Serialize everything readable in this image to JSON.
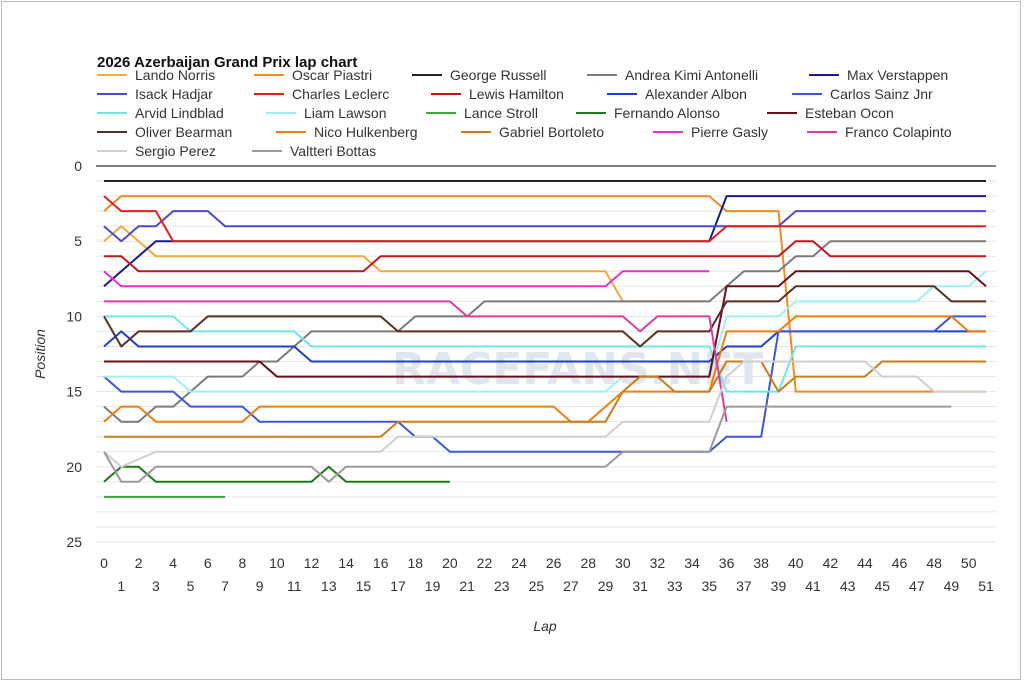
{
  "chart_data": {
    "type": "line",
    "title": "2026 Azerbaijan Grand Prix lap chart",
    "xlabel": "Lap",
    "ylabel": "Position",
    "xlim": [
      0,
      51
    ],
    "ylim": [
      25,
      0
    ],
    "yticks": [
      0,
      5,
      10,
      15,
      20,
      25
    ],
    "watermark": "RACEFANS.NET",
    "series": [
      {
        "name": "Lando Norris",
        "color": "#f2a93b",
        "points": [
          [
            0,
            5
          ],
          [
            1,
            4
          ],
          [
            2,
            5
          ],
          [
            3,
            6
          ],
          [
            15,
            6
          ],
          [
            16,
            7
          ],
          [
            29,
            7
          ],
          [
            30,
            9
          ],
          [
            35,
            9
          ]
        ]
      },
      {
        "name": "Oscar Piastri",
        "color": "#f08a24",
        "points": [
          [
            0,
            3
          ],
          [
            1,
            2
          ],
          [
            35,
            2
          ],
          [
            36,
            3
          ],
          [
            39,
            3
          ],
          [
            40,
            15
          ],
          [
            51,
            15
          ]
        ]
      },
      {
        "name": "George Russell",
        "color": "#222222",
        "points": [
          [
            0,
            1
          ],
          [
            51,
            1
          ]
        ]
      },
      {
        "name": "Andrea Kimi Antonelli",
        "color": "#7a7a7a",
        "points": [
          [
            0,
            16
          ],
          [
            1,
            17
          ],
          [
            2,
            17
          ],
          [
            3,
            16
          ],
          [
            4,
            16
          ],
          [
            5,
            15
          ],
          [
            6,
            14
          ],
          [
            8,
            14
          ],
          [
            9,
            13
          ],
          [
            10,
            13
          ],
          [
            11,
            12
          ],
          [
            12,
            11
          ],
          [
            17,
            11
          ],
          [
            18,
            10
          ],
          [
            21,
            10
          ],
          [
            22,
            9
          ],
          [
            35,
            9
          ],
          [
            36,
            8
          ],
          [
            37,
            7
          ],
          [
            39,
            7
          ],
          [
            40,
            6
          ],
          [
            41,
            6
          ],
          [
            42,
            5
          ],
          [
            51,
            5
          ]
        ]
      },
      {
        "name": "Max Verstappen",
        "color": "#1a1a8c",
        "points": [
          [
            0,
            8
          ],
          [
            1,
            7
          ],
          [
            2,
            6
          ],
          [
            3,
            5
          ],
          [
            35,
            5
          ],
          [
            36,
            2
          ],
          [
            51,
            2
          ]
        ]
      },
      {
        "name": "Isack Hadjar",
        "color": "#4a4acf",
        "points": [
          [
            0,
            4
          ],
          [
            1,
            5
          ],
          [
            2,
            4
          ],
          [
            3,
            4
          ],
          [
            4,
            3
          ],
          [
            6,
            3
          ],
          [
            7,
            4
          ],
          [
            39,
            4
          ],
          [
            40,
            3
          ],
          [
            51,
            3
          ]
        ]
      },
      {
        "name": "Charles Leclerc",
        "color": "#e0201c",
        "points": [
          [
            0,
            2
          ],
          [
            1,
            3
          ],
          [
            3,
            3
          ],
          [
            4,
            5
          ],
          [
            35,
            5
          ],
          [
            36,
            4
          ],
          [
            51,
            4
          ]
        ]
      },
      {
        "name": "Lewis Hamilton",
        "color": "#c01818",
        "points": [
          [
            0,
            6
          ],
          [
            1,
            6
          ],
          [
            2,
            7
          ],
          [
            15,
            7
          ],
          [
            16,
            6
          ],
          [
            39,
            6
          ],
          [
            40,
            5
          ],
          [
            41,
            5
          ],
          [
            42,
            6
          ],
          [
            51,
            6
          ]
        ]
      },
      {
        "name": "Alexander Albon",
        "color": "#1e3fd0",
        "points": [
          [
            0,
            12
          ],
          [
            1,
            11
          ],
          [
            2,
            12
          ],
          [
            11,
            12
          ],
          [
            12,
            13
          ],
          [
            35,
            13
          ],
          [
            36,
            12
          ],
          [
            38,
            12
          ],
          [
            39,
            11
          ],
          [
            51,
            11
          ]
        ]
      },
      {
        "name": "Carlos Sainz Jnr",
        "color": "#3d56d6",
        "points": [
          [
            0,
            14
          ],
          [
            1,
            15
          ],
          [
            4,
            15
          ],
          [
            5,
            16
          ],
          [
            8,
            16
          ],
          [
            9,
            17
          ],
          [
            17,
            17
          ],
          [
            18,
            18
          ],
          [
            19,
            18
          ],
          [
            20,
            19
          ],
          [
            35,
            19
          ],
          [
            36,
            18
          ],
          [
            38,
            18
          ],
          [
            39,
            11
          ],
          [
            48,
            11
          ],
          [
            49,
            10
          ],
          [
            51,
            10
          ]
        ]
      },
      {
        "name": "Arvid Lindblad",
        "color": "#6ee6e6",
        "points": [
          [
            0,
            10
          ],
          [
            1,
            10
          ],
          [
            4,
            10
          ],
          [
            5,
            11
          ],
          [
            11,
            11
          ],
          [
            12,
            12
          ],
          [
            35,
            12
          ],
          [
            36,
            15
          ],
          [
            39,
            15
          ],
          [
            40,
            12
          ],
          [
            51,
            12
          ]
        ]
      },
      {
        "name": "Liam Lawson",
        "color": "#9ef0f0",
        "points": [
          [
            0,
            14
          ],
          [
            4,
            14
          ],
          [
            5,
            15
          ],
          [
            29,
            15
          ],
          [
            30,
            14
          ],
          [
            35,
            14
          ],
          [
            36,
            10
          ],
          [
            39,
            10
          ],
          [
            40,
            9
          ],
          [
            47,
            9
          ],
          [
            48,
            8
          ],
          [
            50,
            8
          ],
          [
            51,
            7
          ]
        ]
      },
      {
        "name": "Lance Stroll",
        "color": "#3aa83a",
        "points": [
          [
            0,
            22
          ],
          [
            7,
            22
          ]
        ]
      },
      {
        "name": "Fernando Alonso",
        "color": "#1c7a1c",
        "points": [
          [
            0,
            21
          ],
          [
            1,
            20
          ],
          [
            2,
            20
          ],
          [
            3,
            21
          ],
          [
            12,
            21
          ],
          [
            13,
            20
          ],
          [
            14,
            21
          ],
          [
            20,
            21
          ]
        ]
      },
      {
        "name": "Esteban Ocon",
        "color": "#6a0f1a",
        "points": [
          [
            0,
            13
          ],
          [
            9,
            13
          ],
          [
            10,
            14
          ],
          [
            35,
            14
          ],
          [
            36,
            8
          ],
          [
            39,
            8
          ],
          [
            40,
            7
          ],
          [
            49,
            7
          ],
          [
            50,
            7
          ],
          [
            51,
            8
          ]
        ]
      },
      {
        "name": "Oliver Bearman",
        "color": "#5a2e22",
        "points": [
          [
            0,
            10
          ],
          [
            1,
            12
          ],
          [
            2,
            11
          ],
          [
            5,
            11
          ],
          [
            6,
            10
          ],
          [
            16,
            10
          ],
          [
            17,
            11
          ],
          [
            28,
            11
          ],
          [
            29,
            11
          ],
          [
            30,
            11
          ],
          [
            31,
            12
          ],
          [
            32,
            11
          ],
          [
            35,
            11
          ],
          [
            36,
            9
          ],
          [
            39,
            9
          ],
          [
            40,
            8
          ],
          [
            48,
            8
          ],
          [
            49,
            9
          ],
          [
            51,
            9
          ]
        ]
      },
      {
        "name": "Nico Hulkenberg",
        "color": "#f07d10",
        "points": [
          [
            0,
            17
          ],
          [
            1,
            16
          ],
          [
            2,
            16
          ],
          [
            3,
            17
          ],
          [
            8,
            17
          ],
          [
            9,
            16
          ],
          [
            26,
            16
          ],
          [
            27,
            17
          ],
          [
            28,
            17
          ],
          [
            29,
            16
          ],
          [
            30,
            15
          ],
          [
            35,
            15
          ],
          [
            36,
            11
          ],
          [
            39,
            11
          ],
          [
            40,
            10
          ],
          [
            49,
            10
          ],
          [
            50,
            11
          ],
          [
            51,
            11
          ]
        ]
      },
      {
        "name": "Gabriel Bortoleto",
        "color": "#c67e1a",
        "points": [
          [
            0,
            18
          ],
          [
            1,
            18
          ],
          [
            2,
            18
          ],
          [
            16,
            18
          ],
          [
            17,
            17
          ],
          [
            29,
            17
          ],
          [
            30,
            15
          ],
          [
            31,
            14
          ],
          [
            32,
            14
          ],
          [
            33,
            15
          ],
          [
            35,
            15
          ],
          [
            36,
            13
          ],
          [
            38,
            13
          ],
          [
            39,
            15
          ],
          [
            40,
            14
          ],
          [
            44,
            14
          ],
          [
            45,
            13
          ],
          [
            51,
            13
          ]
        ]
      },
      {
        "name": "Pierre Gasly",
        "color": "#e632c8",
        "points": [
          [
            0,
            7
          ],
          [
            1,
            8
          ],
          [
            29,
            8
          ],
          [
            30,
            7
          ],
          [
            35,
            7
          ]
        ]
      },
      {
        "name": "Franco Colapinto",
        "color": "#e03aa0",
        "points": [
          [
            0,
            9
          ],
          [
            20,
            9
          ],
          [
            21,
            10
          ],
          [
            30,
            10
          ],
          [
            31,
            11
          ],
          [
            32,
            10
          ],
          [
            35,
            10
          ],
          [
            36,
            17
          ]
        ]
      },
      {
        "name": "Sergio Perez",
        "color": "#cfcfcf",
        "points": [
          [
            0,
            19
          ],
          [
            1,
            20
          ],
          [
            3,
            19
          ],
          [
            16,
            19
          ],
          [
            17,
            18
          ],
          [
            20,
            18
          ],
          [
            21,
            18
          ],
          [
            29,
            18
          ],
          [
            30,
            17
          ],
          [
            35,
            17
          ],
          [
            36,
            14
          ],
          [
            37,
            13
          ],
          [
            44,
            13
          ],
          [
            45,
            14
          ],
          [
            47,
            14
          ],
          [
            48,
            15
          ],
          [
            51,
            15
          ]
        ]
      },
      {
        "name": "Valtteri Bottas",
        "color": "#9a9a9a",
        "points": [
          [
            0,
            19
          ],
          [
            1,
            21
          ],
          [
            2,
            21
          ],
          [
            3,
            20
          ],
          [
            12,
            20
          ],
          [
            13,
            21
          ],
          [
            14,
            20
          ],
          [
            28,
            20
          ],
          [
            29,
            20
          ],
          [
            30,
            19
          ],
          [
            35,
            19
          ],
          [
            36,
            16
          ],
          [
            49,
            16
          ]
        ]
      }
    ]
  }
}
